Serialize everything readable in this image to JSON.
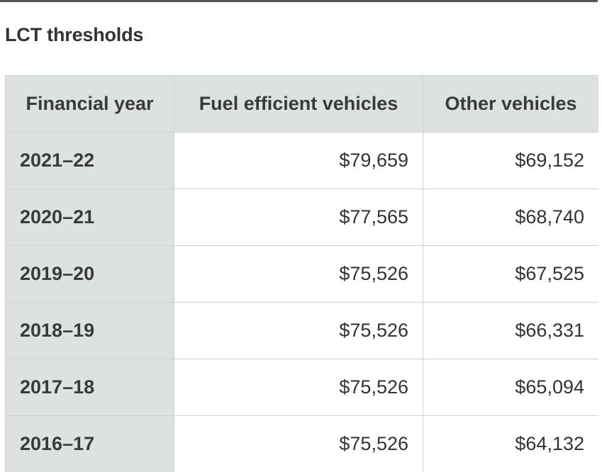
{
  "title": "LCT thresholds",
  "table": {
    "headers": [
      "Financial year",
      "Fuel efficient vehicles",
      "Other vehicles"
    ],
    "rows": [
      [
        "2021–22",
        "$79,659",
        "$69,152"
      ],
      [
        "2020–21",
        "$77,565",
        "$68,740"
      ],
      [
        "2019–20",
        "$75,526",
        "$67,525"
      ],
      [
        "2018–19",
        "$75,526",
        "$66,331"
      ],
      [
        "2017–18",
        "$75,526",
        "$65,094"
      ],
      [
        "2016–17",
        "$75,526",
        "$64,132"
      ]
    ]
  }
}
